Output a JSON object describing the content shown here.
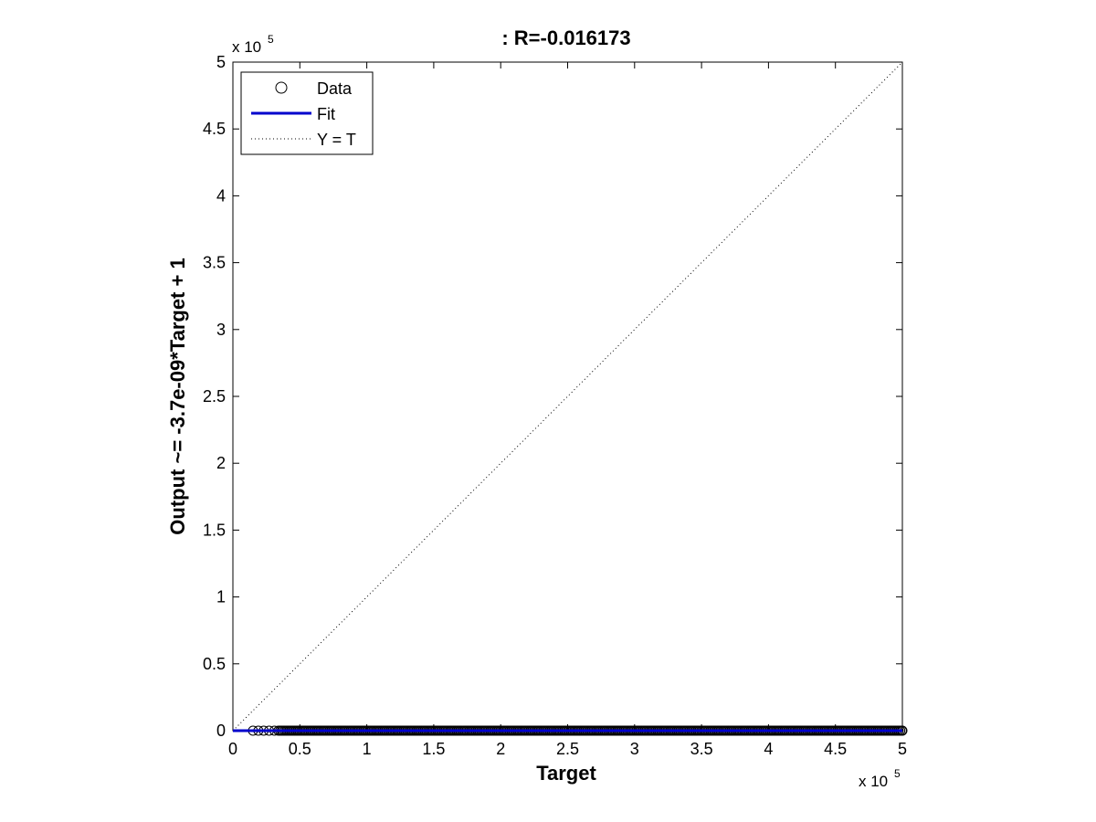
{
  "chart_data": {
    "type": "scatter",
    "title": ": R=-0.016173",
    "xlabel": "Target",
    "ylabel": "Output ~= -3.7e-09*Target + 1",
    "x_multiplier": "x 10",
    "x_multiplier_exp": "5",
    "y_multiplier": "x 10",
    "y_multiplier_exp": "5",
    "xlim": [
      0,
      500000
    ],
    "ylim": [
      0,
      500000
    ],
    "x_ticks": [
      0,
      50000,
      100000,
      150000,
      200000,
      250000,
      300000,
      350000,
      400000,
      450000,
      500000
    ],
    "x_tick_labels": [
      "0",
      "0.5",
      "1",
      "1.5",
      "2",
      "2.5",
      "3",
      "3.5",
      "4",
      "4.5",
      "5"
    ],
    "y_ticks": [
      0,
      50000,
      100000,
      150000,
      200000,
      250000,
      300000,
      350000,
      400000,
      450000,
      500000
    ],
    "y_tick_labels": [
      "0",
      "0.5",
      "1",
      "1.5",
      "2",
      "2.5",
      "3",
      "3.5",
      "4",
      "4.5",
      "5"
    ],
    "grid": false,
    "legend_position": "top-left",
    "series": [
      {
        "name": "Data",
        "style": "open-circle",
        "color": "#000000",
        "x_start": 15000,
        "x_end": 500000,
        "y_value": 0
      },
      {
        "name": "Fit",
        "style": "solid-line",
        "color": "#0000cc",
        "slope": -3.7e-09,
        "intercept": 1
      },
      {
        "name": "Y = T",
        "style": "dotted-line",
        "color": "#000000",
        "slope": 1,
        "intercept": 0
      }
    ]
  }
}
